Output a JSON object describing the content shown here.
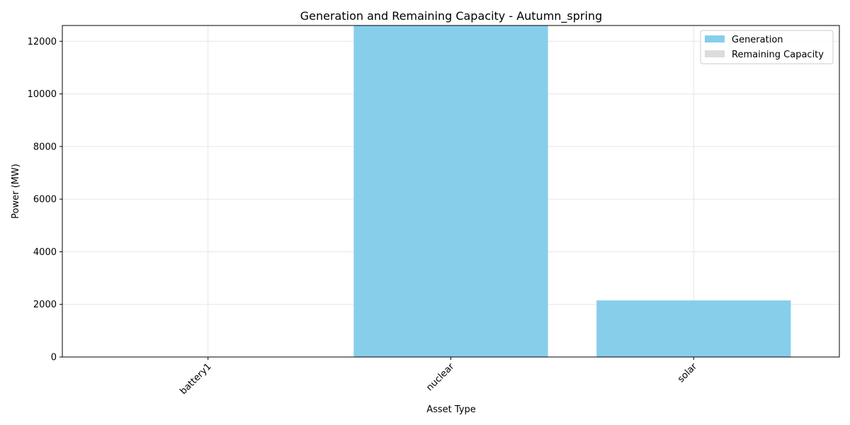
{
  "chart_data": {
    "type": "bar",
    "title": "Generation and Remaining Capacity - Autumn_spring",
    "xlabel": "Asset Type",
    "ylabel": "Power (MW)",
    "categories": [
      "battery1",
      "nuclear",
      "solar"
    ],
    "series": [
      {
        "name": "Generation",
        "values": [
          10,
          12600,
          2150
        ]
      },
      {
        "name": "Remaining Capacity",
        "values": [
          0,
          0,
          0
        ]
      }
    ],
    "ylim": [
      0,
      12600
    ],
    "yticks": [
      0,
      2000,
      4000,
      6000,
      8000,
      10000,
      12000
    ],
    "grid": true,
    "legend_position": "top-right",
    "colors": {
      "Generation": "#87CEEB",
      "Remaining Capacity": "#DCDCDC"
    }
  }
}
